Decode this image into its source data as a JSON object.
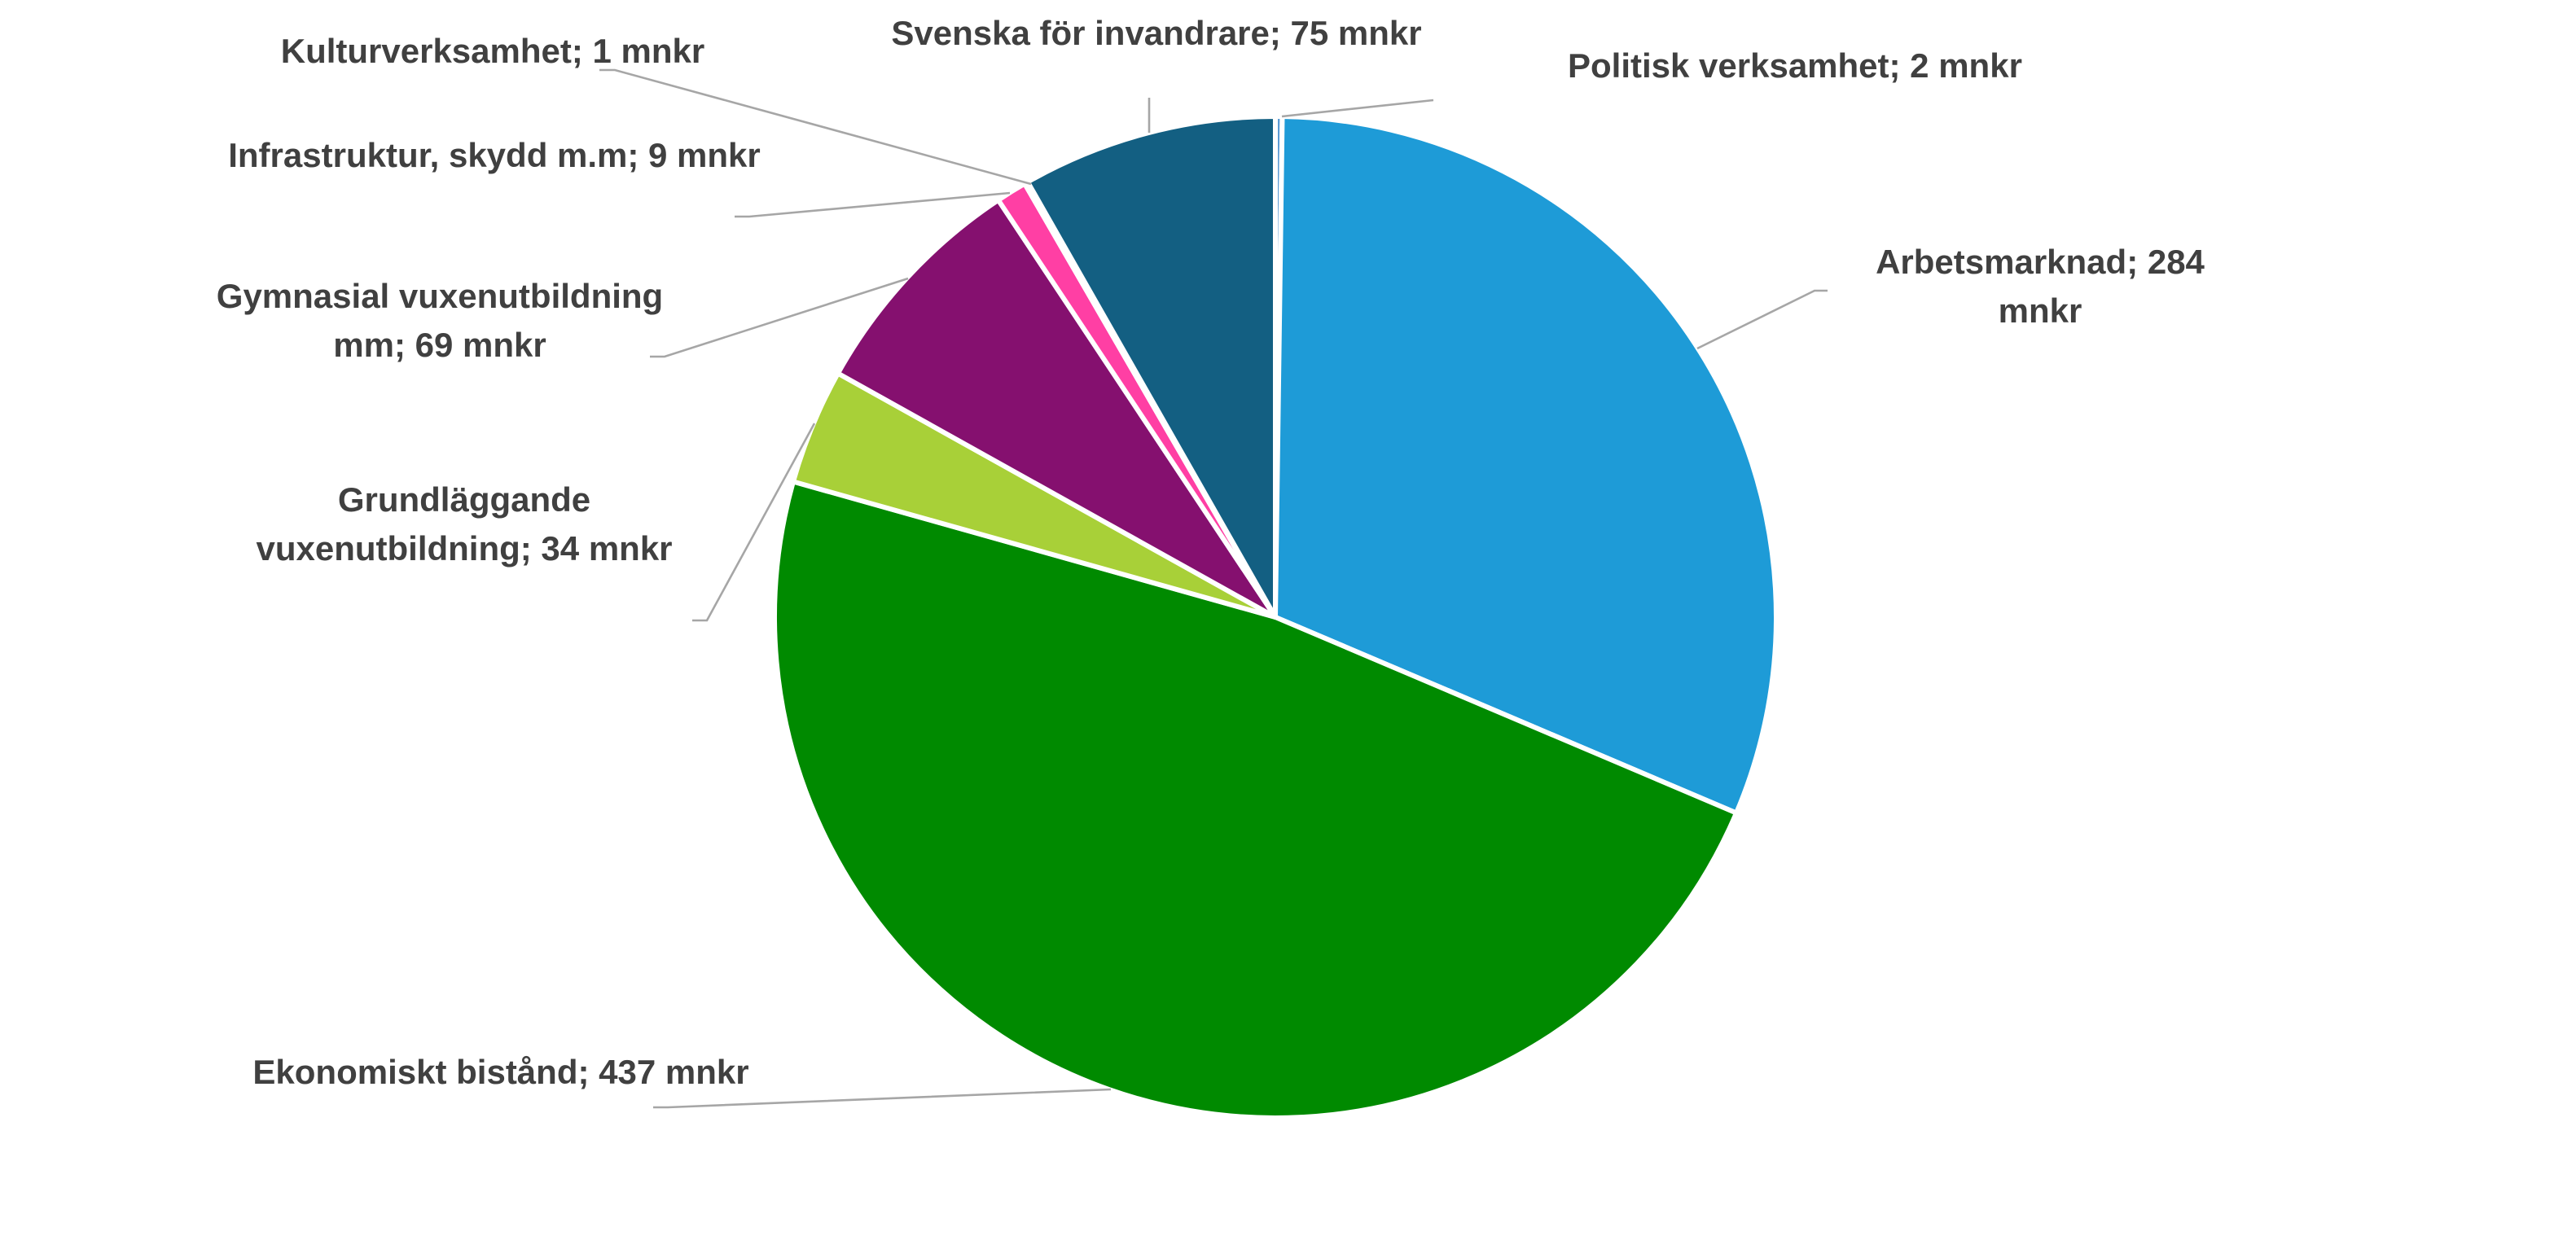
{
  "chart_data": {
    "type": "pie",
    "unit": "mnkr",
    "slices": [
      {
        "name": "Politisk verksamhet",
        "value": 2,
        "label": [
          "Politisk verksamhet; 2 mnkr"
        ],
        "color": "#5b9bd5"
      },
      {
        "name": "Arbetsmarknad",
        "value": 284,
        "label": [
          "Arbetsmarknad; 284",
          "mnkr"
        ],
        "color": "#1e9bd7"
      },
      {
        "name": "Ekonomiskt bistånd",
        "value": 437,
        "label": [
          "Ekonomiskt bistånd; 437 mnkr"
        ],
        "color": "#008a00"
      },
      {
        "name": "Grundläggande vuxenutbildning",
        "value": 34,
        "label": [
          "Grundläggande",
          "vuxenutbildning; 34 mnkr"
        ],
        "color": "#a8d038"
      },
      {
        "name": "Gymnasial vuxenutbildning mm",
        "value": 69,
        "label": [
          "Gymnasial vuxenutbildning",
          "mm; 69 mnkr"
        ],
        "color": "#85106f"
      },
      {
        "name": "Infrastruktur, skydd m.m",
        "value": 9,
        "label": [
          "Infrastruktur,  skydd m.m; 9 mnkr"
        ],
        "color": "#ff3fa4"
      },
      {
        "name": "Kulturverksamhet",
        "value": 1,
        "label": [
          "Kulturverksamhet; 1 mnkr"
        ],
        "color": "#7f7f7f"
      },
      {
        "name": "Svenska för invandrare",
        "value": 75,
        "label": [
          "Svenska för invandrare; 75 mnkr"
        ],
        "color": "#135f82"
      }
    ]
  }
}
